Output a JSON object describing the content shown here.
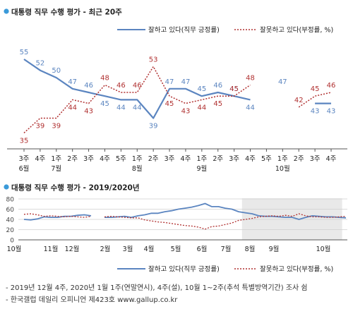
{
  "chart_data": [
    {
      "type": "line",
      "title": "대통령 직무 수행 평가 - 최근 20주",
      "legend": {
        "placement": "top-right"
      },
      "categories": [
        {
          "week": "3주",
          "month": "6월"
        },
        {
          "week": "4주",
          "month": ""
        },
        {
          "week": "1주",
          "month": "7월"
        },
        {
          "week": "2주",
          "month": ""
        },
        {
          "week": "3주",
          "month": ""
        },
        {
          "week": "4주",
          "month": ""
        },
        {
          "week": "5주",
          "month": ""
        },
        {
          "week": "1주",
          "month": "8월"
        },
        {
          "week": "2주",
          "month": ""
        },
        {
          "week": "3주",
          "month": ""
        },
        {
          "week": "4주",
          "month": ""
        },
        {
          "week": "1주",
          "month": "9월"
        },
        {
          "week": "2주",
          "month": ""
        },
        {
          "week": "3주",
          "month": ""
        },
        {
          "week": "4주",
          "month": ""
        },
        {
          "week": "5주",
          "month": ""
        },
        {
          "week": "1주",
          "month": "10월"
        },
        {
          "week": "2주",
          "month": ""
        },
        {
          "week": "3주",
          "month": ""
        },
        {
          "week": "4주",
          "month": ""
        }
      ],
      "ylim": [
        30,
        60
      ],
      "series": [
        {
          "name": "잘하고 있다(직무 긍정률)",
          "color": "#5b85c0",
          "style": "solid",
          "values": [
            55,
            52,
            50,
            47,
            46,
            45,
            44,
            44,
            39,
            47,
            47,
            45,
            46,
            45,
            44,
            null,
            47,
            null,
            43,
            43
          ],
          "labels": [
            "55",
            "52",
            "50",
            "47",
            "46",
            "45",
            "44",
            "44",
            "39",
            "47",
            "47",
            "45",
            "46",
            "45",
            "44",
            "",
            "47",
            "",
            "43",
            "43"
          ]
        },
        {
          "name": "잘못하고 있다(부정률, %)",
          "color": "#b03030",
          "style": "dotted",
          "values": [
            35,
            39,
            39,
            44,
            43,
            48,
            46,
            46,
            53,
            45,
            43,
            44,
            45,
            45,
            48,
            null,
            null,
            42,
            45,
            46
          ],
          "labels": [
            "35",
            "39",
            "39",
            "44",
            "43",
            "48",
            "46",
            "46",
            "53",
            "45",
            "43",
            "44",
            "45",
            "45",
            "48",
            "",
            "",
            "42",
            "45",
            "46"
          ]
        }
      ]
    },
    {
      "type": "line",
      "title": "대통령 직무 수행 평가 - 2019/2020년",
      "legend": {
        "placement": "bottom-right"
      },
      "y_ticks": [
        0,
        20,
        40,
        60,
        80
      ],
      "ylim": [
        0,
        80
      ],
      "x_labels": [
        "10월",
        "11월",
        "12월",
        "2월",
        "3월",
        "4월",
        "5월",
        "6월",
        "7월",
        "8월",
        "9월",
        "10월"
      ],
      "highlight": {
        "from_index": 32.5,
        "to_index": 47
      },
      "series": [
        {
          "name": "잘하고 있다(직무 긍정률)",
          "color": "#5b85c0",
          "style": "solid",
          "values": [
            40,
            39,
            41,
            45,
            44,
            44,
            46,
            46,
            48,
            49,
            47,
            null,
            44,
            44,
            45,
            46,
            44,
            47,
            49,
            52,
            52,
            55,
            57,
            60,
            62,
            64,
            67,
            71,
            65,
            65,
            62,
            60,
            55,
            53,
            51,
            47,
            46,
            46,
            45,
            44,
            44,
            40,
            44,
            47,
            46,
            45,
            45,
            44,
            43
          ]
        },
        {
          "name": "잘못하고 있다(부정률, %)",
          "color": "#b03030",
          "style": "dotted",
          "values": [
            50,
            51,
            49,
            46,
            47,
            46,
            45,
            46,
            45,
            44,
            46,
            null,
            45,
            46,
            45,
            44,
            43,
            43,
            39,
            37,
            35,
            34,
            32,
            30,
            28,
            27,
            25,
            21,
            26,
            27,
            30,
            33,
            38,
            40,
            42,
            45,
            46,
            47,
            46,
            48,
            46,
            51,
            47,
            45,
            45,
            44,
            44,
            45,
            46
          ]
        }
      ]
    }
  ],
  "notes": [
    "- 2019년 12월 4주, 2020년 1월 1주(연말연시), 4주(설), 10월 1~2주(추석 특별방역기간) 조사 쉼",
    "- 한국갤럽 데일리 오피니언 제423호 www.gallup.co.kr"
  ],
  "colors": {
    "positive": "#5b85c0",
    "negative": "#b03030",
    "bullet": "#3a9ad9",
    "highlight": "#e9e9e9"
  }
}
